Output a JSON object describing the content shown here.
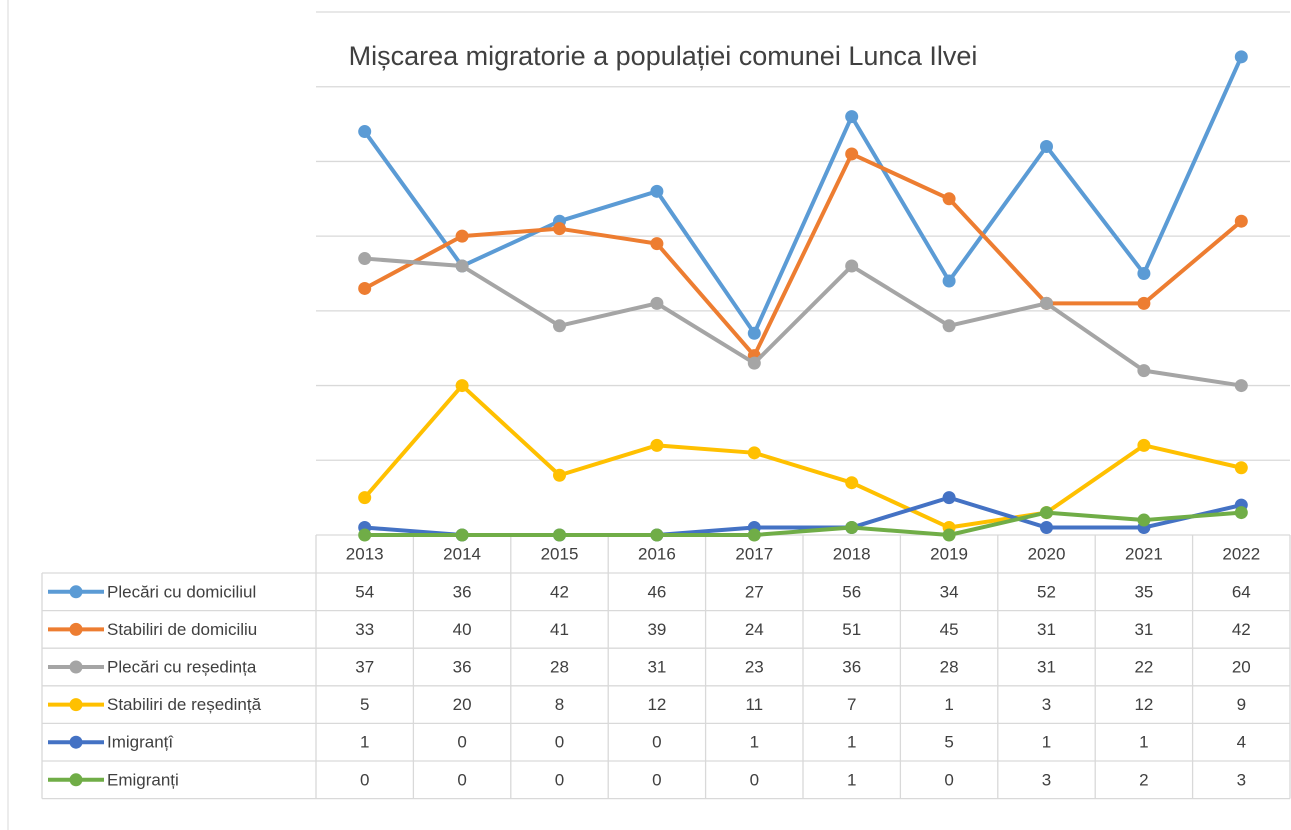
{
  "chart_data": {
    "type": "line",
    "title": "Mișcarea migratorie a populației comunei Lunca Ilvei",
    "categories": [
      "2013",
      "2014",
      "2015",
      "2016",
      "2017",
      "2018",
      "2019",
      "2020",
      "2021",
      "2022"
    ],
    "series": [
      {
        "name": "Plecări cu domiciliul",
        "color": "#5b9bd5",
        "values": [
          54,
          36,
          42,
          46,
          27,
          56,
          34,
          52,
          35,
          64
        ]
      },
      {
        "name": "Stabiliri de domiciliu",
        "color": "#ed7d31",
        "values": [
          33,
          40,
          41,
          39,
          24,
          51,
          45,
          31,
          31,
          42
        ]
      },
      {
        "name": "Plecări cu reședința",
        "color": "#a5a5a5",
        "values": [
          37,
          36,
          28,
          31,
          23,
          36,
          28,
          31,
          22,
          20
        ]
      },
      {
        "name": "Stabiliri de reședință",
        "color": "#ffc000",
        "values": [
          5,
          20,
          8,
          12,
          11,
          7,
          1,
          3,
          12,
          9
        ]
      },
      {
        "name": "Imigranțî",
        "color": "#4472c4",
        "values": [
          1,
          0,
          0,
          0,
          1,
          1,
          5,
          1,
          1,
          4
        ]
      },
      {
        "name": "Emigranți",
        "color": "#70ad47",
        "values": [
          0,
          0,
          0,
          0,
          0,
          1,
          0,
          3,
          2,
          3
        ]
      }
    ],
    "ylim": [
      0,
      70
    ],
    "yticks": [
      0,
      10,
      20,
      30,
      40,
      50,
      60,
      70
    ],
    "grid": true
  }
}
